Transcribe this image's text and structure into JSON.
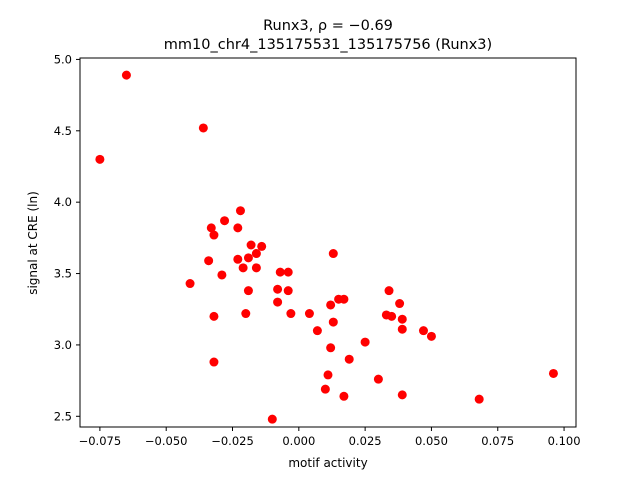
{
  "chart_data": {
    "type": "scatter",
    "title": "Runx3, ρ = −0.69",
    "subtitle": "mm10_chr4_135175531_135175756 (Runx3)",
    "xlabel": "motif activity",
    "ylabel": "signal at CRE (ln)",
    "xlim": [
      -0.0825,
      0.1045
    ],
    "ylim": [
      2.425,
      5.01
    ],
    "xticks": [
      -0.075,
      -0.05,
      -0.025,
      0.0,
      0.025,
      0.05,
      0.075,
      0.1
    ],
    "xtick_labels": [
      "−0.075",
      "−0.050",
      "−0.025",
      "0.000",
      "0.025",
      "0.050",
      "0.075",
      "0.100"
    ],
    "yticks": [
      2.5,
      3.0,
      3.5,
      4.0,
      4.5,
      5.0
    ],
    "ytick_labels": [
      "2.5",
      "3.0",
      "3.5",
      "4.0",
      "4.5",
      "5.0"
    ],
    "grid": false,
    "legend": "none",
    "marker_color": "#ff0000",
    "points": [
      {
        "x": -0.075,
        "y": 4.3
      },
      {
        "x": -0.065,
        "y": 4.89
      },
      {
        "x": -0.036,
        "y": 4.52
      },
      {
        "x": -0.041,
        "y": 3.43
      },
      {
        "x": -0.033,
        "y": 3.82
      },
      {
        "x": -0.032,
        "y": 3.77
      },
      {
        "x": -0.034,
        "y": 3.59
      },
      {
        "x": -0.028,
        "y": 3.87
      },
      {
        "x": -0.029,
        "y": 3.49
      },
      {
        "x": -0.022,
        "y": 3.94
      },
      {
        "x": -0.023,
        "y": 3.82
      },
      {
        "x": -0.023,
        "y": 3.6
      },
      {
        "x": -0.021,
        "y": 3.54
      },
      {
        "x": -0.019,
        "y": 3.61
      },
      {
        "x": -0.018,
        "y": 3.7
      },
      {
        "x": -0.016,
        "y": 3.64
      },
      {
        "x": -0.014,
        "y": 3.69
      },
      {
        "x": -0.016,
        "y": 3.54
      },
      {
        "x": -0.019,
        "y": 3.38
      },
      {
        "x": -0.02,
        "y": 3.22
      },
      {
        "x": -0.032,
        "y": 3.2
      },
      {
        "x": -0.032,
        "y": 2.88
      },
      {
        "x": -0.01,
        "y": 2.48
      },
      {
        "x": -0.007,
        "y": 3.51
      },
      {
        "x": -0.004,
        "y": 3.51
      },
      {
        "x": -0.008,
        "y": 3.39
      },
      {
        "x": -0.004,
        "y": 3.38
      },
      {
        "x": -0.008,
        "y": 3.3
      },
      {
        "x": -0.003,
        "y": 3.22
      },
      {
        "x": 0.004,
        "y": 3.22
      },
      {
        "x": 0.007,
        "y": 3.1
      },
      {
        "x": 0.013,
        "y": 3.64
      },
      {
        "x": 0.015,
        "y": 3.32
      },
      {
        "x": 0.017,
        "y": 3.32
      },
      {
        "x": 0.012,
        "y": 3.28
      },
      {
        "x": 0.013,
        "y": 3.16
      },
      {
        "x": 0.012,
        "y": 2.98
      },
      {
        "x": 0.019,
        "y": 2.9
      },
      {
        "x": 0.011,
        "y": 2.79
      },
      {
        "x": 0.01,
        "y": 2.69
      },
      {
        "x": 0.017,
        "y": 2.64
      },
      {
        "x": 0.025,
        "y": 3.02
      },
      {
        "x": 0.034,
        "y": 3.38
      },
      {
        "x": 0.033,
        "y": 3.21
      },
      {
        "x": 0.035,
        "y": 3.2
      },
      {
        "x": 0.038,
        "y": 3.29
      },
      {
        "x": 0.039,
        "y": 3.18
      },
      {
        "x": 0.039,
        "y": 3.11
      },
      {
        "x": 0.047,
        "y": 3.1
      },
      {
        "x": 0.05,
        "y": 3.06
      },
      {
        "x": 0.03,
        "y": 2.76
      },
      {
        "x": 0.039,
        "y": 2.65
      },
      {
        "x": 0.068,
        "y": 2.62
      },
      {
        "x": 0.096,
        "y": 2.8
      }
    ]
  }
}
